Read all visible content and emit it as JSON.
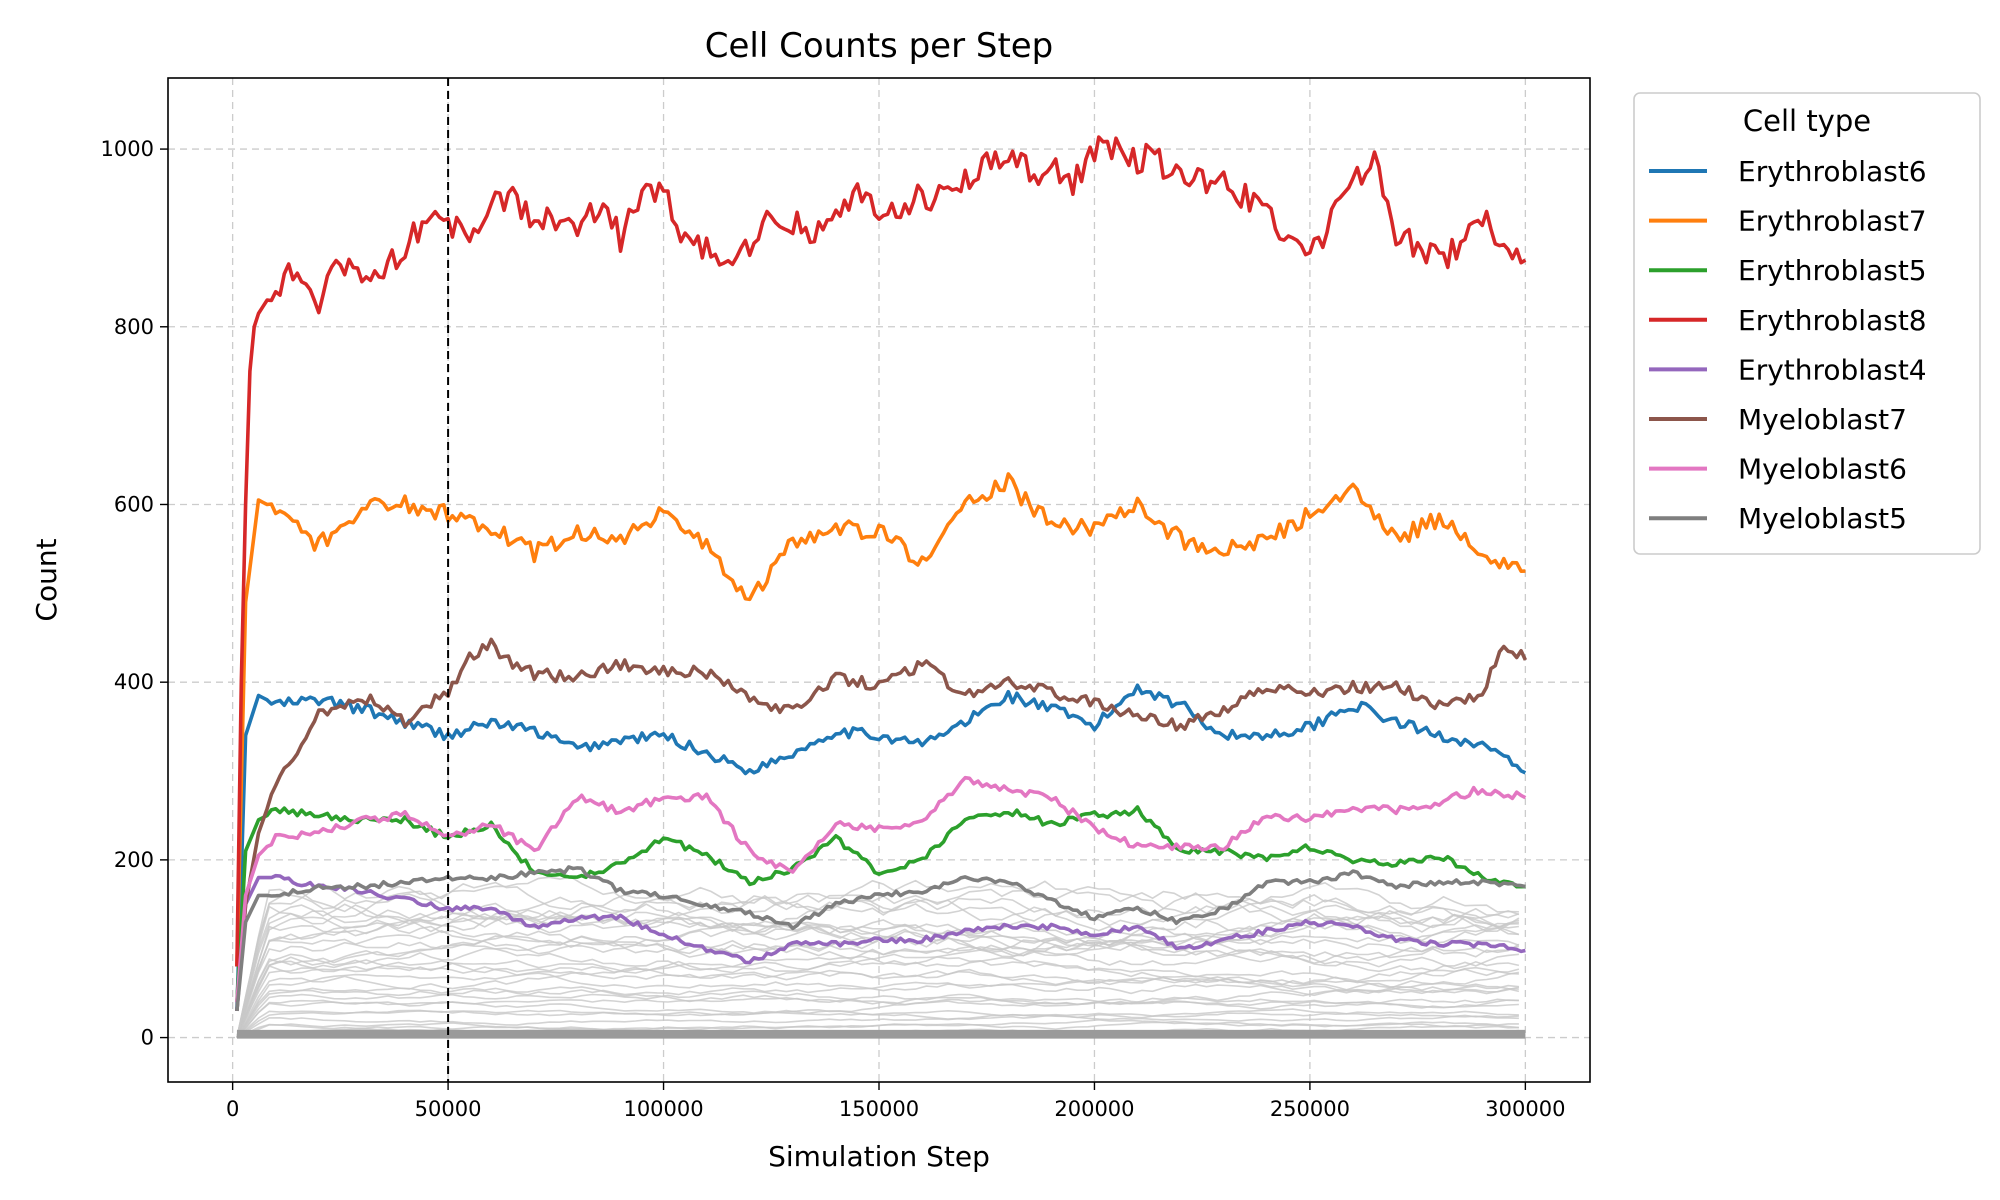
{
  "chart_data": {
    "type": "line",
    "title": "Cell Counts per Step",
    "xlabel": "Simulation Step",
    "ylabel": "Count",
    "xlim": [
      -15000,
      315000
    ],
    "ylim": [
      -50,
      1080
    ],
    "xticks": [
      0,
      50000,
      100000,
      150000,
      200000,
      250000,
      300000
    ],
    "xtick_labels": [
      "0",
      "50000",
      "100000",
      "150000",
      "200000",
      "250000",
      "300000"
    ],
    "yticks": [
      0,
      200,
      400,
      600,
      800,
      1000
    ],
    "ytick_labels": [
      "0",
      "200",
      "400",
      "600",
      "800",
      "1000"
    ],
    "grid": true,
    "vline_x": 50000,
    "legend": {
      "title": "Cell type",
      "placement": "outside-right-top"
    },
    "background_series_color": "#c8c8c8",
    "series": [
      {
        "name": "Erythroblast6",
        "color": "#1f77b4",
        "x": [
          1000,
          3000,
          6000,
          10000,
          20000,
          30000,
          40000,
          50000,
          60000,
          70000,
          80000,
          90000,
          100000,
          110000,
          120000,
          130000,
          140000,
          150000,
          160000,
          170000,
          180000,
          190000,
          200000,
          210000,
          220000,
          230000,
          240000,
          250000,
          260000,
          270000,
          280000,
          290000,
          300000
        ],
        "y": [
          30,
          340,
          385,
          375,
          380,
          370,
          355,
          340,
          355,
          345,
          325,
          335,
          340,
          320,
          300,
          320,
          345,
          340,
          330,
          355,
          385,
          370,
          350,
          395,
          375,
          340,
          340,
          350,
          375,
          355,
          340,
          330,
          298
        ]
      },
      {
        "name": "Erythroblast7",
        "color": "#ff7f0e",
        "x": [
          1000,
          3000,
          6000,
          10000,
          20000,
          30000,
          40000,
          50000,
          60000,
          70000,
          80000,
          90000,
          100000,
          110000,
          120000,
          130000,
          140000,
          150000,
          160000,
          170000,
          180000,
          190000,
          200000,
          210000,
          220000,
          230000,
          240000,
          250000,
          260000,
          270000,
          280000,
          290000,
          300000
        ],
        "y": [
          80,
          490,
          605,
          595,
          555,
          595,
          600,
          590,
          575,
          545,
          570,
          560,
          590,
          555,
          490,
          560,
          575,
          570,
          535,
          600,
          625,
          575,
          575,
          600,
          560,
          550,
          560,
          590,
          615,
          560,
          585,
          545,
          525
        ]
      },
      {
        "name": "Erythroblast5",
        "color": "#2ca02c",
        "x": [
          1000,
          3000,
          6000,
          10000,
          20000,
          30000,
          40000,
          50000,
          60000,
          70000,
          80000,
          90000,
          100000,
          110000,
          120000,
          130000,
          140000,
          150000,
          160000,
          170000,
          180000,
          190000,
          200000,
          210000,
          220000,
          230000,
          240000,
          250000,
          260000,
          270000,
          280000,
          290000,
          300000
        ],
        "y": [
          40,
          210,
          245,
          255,
          250,
          245,
          245,
          225,
          240,
          185,
          180,
          195,
          225,
          205,
          175,
          190,
          225,
          185,
          200,
          245,
          255,
          240,
          250,
          255,
          210,
          210,
          200,
          215,
          200,
          195,
          205,
          180,
          170
        ]
      },
      {
        "name": "Erythroblast8",
        "color": "#d62728",
        "x": [
          1000,
          2000,
          3000,
          4000,
          5000,
          6000,
          8000,
          10000,
          15000,
          20000,
          25000,
          30000,
          35000,
          40000,
          45000,
          50000,
          55000,
          60000,
          65000,
          70000,
          75000,
          80000,
          85000,
          90000,
          95000,
          100000,
          105000,
          110000,
          115000,
          120000,
          125000,
          130000,
          135000,
          140000,
          145000,
          150000,
          155000,
          160000,
          165000,
          170000,
          175000,
          180000,
          185000,
          190000,
          195000,
          200000,
          205000,
          210000,
          215000,
          220000,
          225000,
          230000,
          235000,
          240000,
          245000,
          250000,
          255000,
          260000,
          265000,
          270000,
          275000,
          280000,
          285000,
          290000,
          295000,
          300000
        ],
        "y": [
          80,
          400,
          600,
          750,
          800,
          815,
          830,
          845,
          865,
          830,
          870,
          850,
          860,
          890,
          920,
          920,
          905,
          935,
          950,
          920,
          925,
          910,
          935,
          900,
          945,
          960,
          900,
          890,
          880,
          895,
          930,
          920,
          905,
          930,
          950,
          925,
          935,
          950,
          945,
          960,
          985,
          995,
          970,
          985,
          960,
          1000,
          1005,
          990,
          985,
          975,
          965,
          970,
          945,
          935,
          900,
          880,
          920,
          960,
          1000,
          900,
          890,
          875,
          890,
          925,
          880,
          875
        ]
      },
      {
        "name": "Erythroblast4",
        "color": "#9467bd",
        "x": [
          1000,
          3000,
          6000,
          10000,
          20000,
          30000,
          40000,
          50000,
          60000,
          70000,
          80000,
          90000,
          100000,
          110000,
          120000,
          130000,
          140000,
          150000,
          160000,
          170000,
          180000,
          190000,
          200000,
          210000,
          220000,
          230000,
          240000,
          250000,
          260000,
          270000,
          280000,
          290000,
          300000
        ],
        "y": [
          30,
          150,
          180,
          180,
          170,
          165,
          155,
          145,
          145,
          125,
          135,
          135,
          115,
          100,
          85,
          105,
          105,
          110,
          110,
          120,
          125,
          125,
          115,
          125,
          100,
          110,
          120,
          130,
          125,
          110,
          105,
          105,
          98
        ]
      },
      {
        "name": "Myeloblast7",
        "color": "#8c564b",
        "x": [
          1000,
          3000,
          6000,
          10000,
          15000,
          20000,
          30000,
          40000,
          50000,
          55000,
          60000,
          65000,
          70000,
          80000,
          90000,
          100000,
          110000,
          120000,
          130000,
          140000,
          150000,
          160000,
          170000,
          180000,
          190000,
          200000,
          210000,
          220000,
          230000,
          240000,
          250000,
          260000,
          270000,
          280000,
          290000,
          295000,
          300000
        ],
        "y": [
          30,
          150,
          230,
          285,
          320,
          365,
          385,
          355,
          390,
          430,
          445,
          420,
          410,
          405,
          420,
          415,
          410,
          385,
          365,
          405,
          395,
          420,
          385,
          400,
          390,
          375,
          365,
          350,
          370,
          395,
          385,
          395,
          395,
          375,
          385,
          445,
          425
        ]
      },
      {
        "name": "Myeloblast6",
        "color": "#e377c2",
        "x": [
          1000,
          3000,
          6000,
          10000,
          20000,
          30000,
          40000,
          50000,
          60000,
          70000,
          80000,
          90000,
          100000,
          110000,
          120000,
          130000,
          140000,
          150000,
          160000,
          170000,
          180000,
          190000,
          200000,
          210000,
          220000,
          230000,
          240000,
          250000,
          260000,
          270000,
          280000,
          290000,
          300000
        ],
        "y": [
          40,
          160,
          205,
          225,
          230,
          245,
          250,
          225,
          240,
          210,
          270,
          255,
          270,
          270,
          210,
          185,
          240,
          235,
          245,
          290,
          280,
          270,
          235,
          215,
          215,
          215,
          250,
          245,
          260,
          255,
          265,
          280,
          270
        ]
      },
      {
        "name": "Myeloblast5",
        "color": "#7f7f7f",
        "x": [
          1000,
          3000,
          6000,
          10000,
          20000,
          30000,
          40000,
          50000,
          60000,
          70000,
          80000,
          90000,
          100000,
          110000,
          120000,
          130000,
          140000,
          150000,
          160000,
          170000,
          180000,
          190000,
          200000,
          210000,
          220000,
          230000,
          240000,
          250000,
          260000,
          270000,
          280000,
          290000,
          300000
        ],
        "y": [
          30,
          130,
          160,
          160,
          170,
          170,
          175,
          180,
          180,
          185,
          190,
          165,
          160,
          150,
          140,
          125,
          150,
          160,
          165,
          180,
          175,
          155,
          135,
          145,
          130,
          145,
          175,
          175,
          185,
          170,
          175,
          175,
          170
        ]
      }
    ],
    "background_series_levels": [
      5,
      8,
      12,
      15,
      20,
      25,
      30,
      35,
      40,
      45,
      50,
      55,
      60,
      65,
      70,
      75,
      80,
      85,
      90,
      95,
      100,
      105,
      110,
      115,
      120,
      125,
      130,
      135,
      140,
      145,
      150,
      160
    ]
  }
}
